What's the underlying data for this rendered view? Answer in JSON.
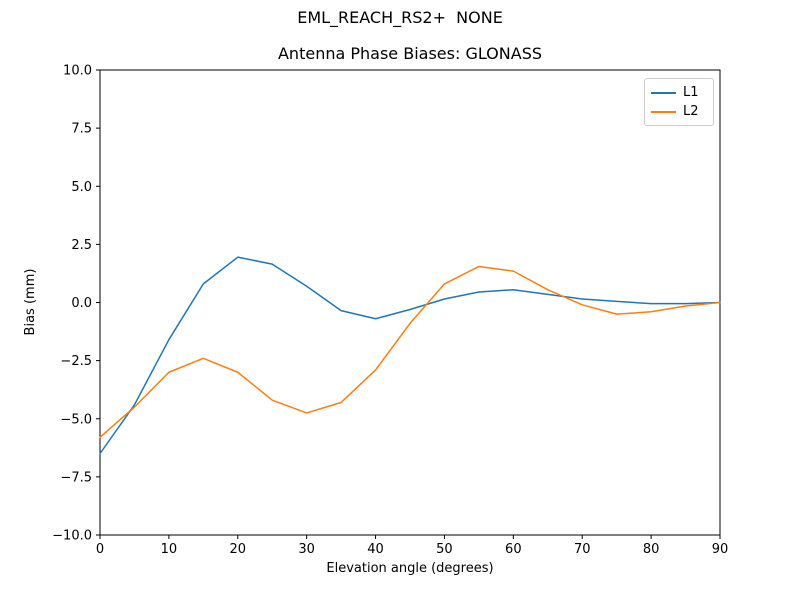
{
  "figure": {
    "title": "EML_REACH_RS2+  NONE",
    "subtitle": "Antenna Phase Biases: GLONASS"
  },
  "chart_data": {
    "type": "line",
    "title": "EML_REACH_RS2+  NONE",
    "subtitle": "Antenna Phase Biases: GLONASS",
    "xlabel": "Elevation angle (degrees)",
    "ylabel": "Bias (mm)",
    "xlim": [
      0,
      90
    ],
    "ylim": [
      -10,
      10
    ],
    "grid": false,
    "legend_position": "upper right",
    "x": [
      0,
      5,
      10,
      15,
      20,
      25,
      30,
      35,
      40,
      45,
      50,
      55,
      60,
      65,
      70,
      75,
      80,
      85,
      90
    ],
    "series": [
      {
        "name": "L1",
        "color": "#1f77b4",
        "values": [
          -6.5,
          -4.4,
          -1.6,
          0.8,
          1.95,
          1.65,
          0.7,
          -0.35,
          -0.7,
          -0.3,
          0.15,
          0.45,
          0.55,
          0.35,
          0.15,
          0.05,
          -0.05,
          -0.05,
          0.0
        ]
      },
      {
        "name": "L2",
        "color": "#ff7f0e",
        "values": [
          -5.8,
          -4.5,
          -3.0,
          -2.4,
          -3.0,
          -4.2,
          -4.75,
          -4.3,
          -2.9,
          -0.9,
          0.8,
          1.55,
          1.35,
          0.55,
          -0.1,
          -0.5,
          -0.4,
          -0.15,
          0.0
        ]
      }
    ],
    "xticks": [
      {
        "v": 0,
        "label": "0"
      },
      {
        "v": 10,
        "label": "10"
      },
      {
        "v": 20,
        "label": "20"
      },
      {
        "v": 30,
        "label": "30"
      },
      {
        "v": 40,
        "label": "40"
      },
      {
        "v": 50,
        "label": "50"
      },
      {
        "v": 60,
        "label": "60"
      },
      {
        "v": 70,
        "label": "70"
      },
      {
        "v": 80,
        "label": "80"
      },
      {
        "v": 90,
        "label": "90"
      }
    ],
    "yticks": [
      {
        "v": 10,
        "label": "10.0"
      },
      {
        "v": 7.5,
        "label": "7.5"
      },
      {
        "v": 5,
        "label": "5.0"
      },
      {
        "v": 2.5,
        "label": "2.5"
      },
      {
        "v": 0,
        "label": "0.0"
      },
      {
        "v": -2.5,
        "label": "−2.5"
      },
      {
        "v": -5,
        "label": "−5.0"
      },
      {
        "v": -7.5,
        "label": "−7.5"
      },
      {
        "v": -10,
        "label": "−10.0"
      }
    ]
  }
}
